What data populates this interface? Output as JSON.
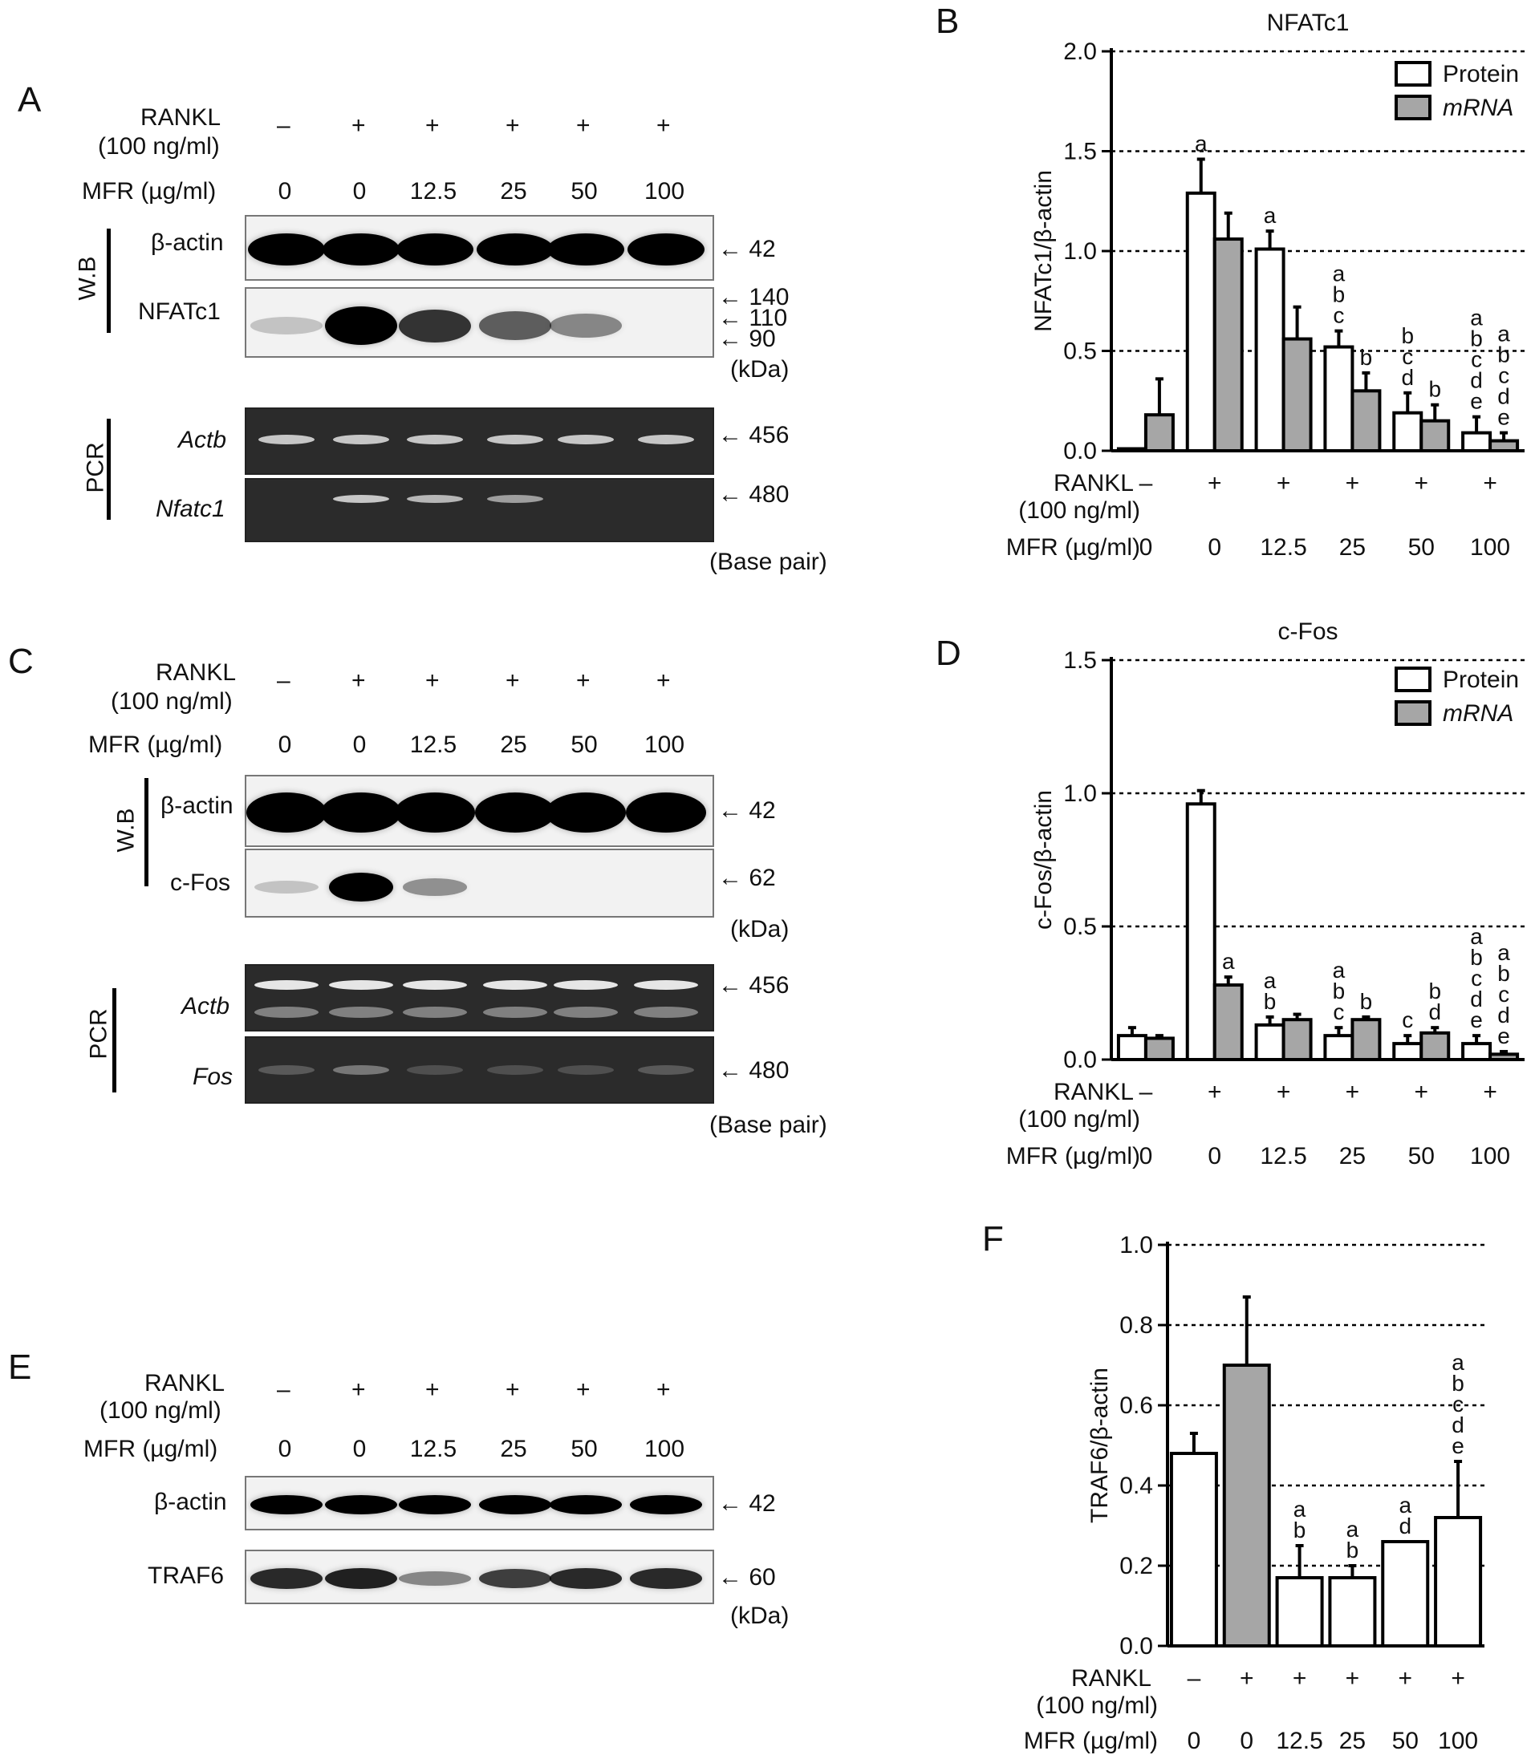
{
  "panels": {
    "A": {
      "letter": "A",
      "rankl_label": "RANKL",
      "rankl_sub": "(100 ng/ml)",
      "rankl_vals": [
        "–",
        "+",
        "+",
        "+",
        "+",
        "+"
      ],
      "mfr_label": "MFR (µg/ml)",
      "mfr_vals": [
        "0",
        "0",
        "12.5",
        "25",
        "50",
        "100"
      ],
      "wb_label": "W.B",
      "pcr_label": "PCR",
      "actin": "β-actin",
      "target": "NFATc1",
      "actb": "Actb",
      "gene": "Nfatc1",
      "mw_actin": "42",
      "mw_target": [
        "140",
        "110",
        "90"
      ],
      "kda": "(kDa)",
      "bp_actb": "456",
      "bp_gene": "480",
      "bp_unit": "(Base pair)"
    },
    "C": {
      "letter": "C",
      "rankl_label": "RANKL",
      "rankl_sub": "(100 ng/ml)",
      "rankl_vals": [
        "–",
        "+",
        "+",
        "+",
        "+",
        "+"
      ],
      "mfr_label": "MFR (µg/ml)",
      "mfr_vals": [
        "0",
        "0",
        "12.5",
        "25",
        "50",
        "100"
      ],
      "wb_label": "W.B",
      "pcr_label": "PCR",
      "actin": "β-actin",
      "target": "c-Fos",
      "actb": "Actb",
      "gene": "Fos",
      "mw_actin": "42",
      "mw_target": "62",
      "kda": "(kDa)",
      "bp_actb": "456",
      "bp_gene": "480",
      "bp_unit": "(Base pair)"
    },
    "E": {
      "letter": "E",
      "rankl_label": "RANKL",
      "rankl_sub": "(100 ng/ml)",
      "rankl_vals": [
        "–",
        "+",
        "+",
        "+",
        "+",
        "+"
      ],
      "mfr_label": "MFR (µg/ml)",
      "mfr_vals": [
        "0",
        "0",
        "12.5",
        "25",
        "50",
        "100"
      ],
      "actin": "β-actin",
      "target": "TRAF6",
      "mw_actin": "42",
      "mw_target": "60",
      "kda": "(kDa)"
    }
  },
  "band_intensity": {
    "A_nfatc1": [
      0.05,
      1.0,
      0.75,
      0.55,
      0.35,
      0.0
    ],
    "A_nfatc1_pcr": [
      0.0,
      0.8,
      0.7,
      0.55,
      0.0,
      0.0
    ],
    "C_cfos": [
      0.05,
      1.0,
      0.3,
      0.0,
      0.0,
      0.0
    ],
    "C_fos_pcr": [
      0.1,
      0.3,
      0.05,
      0.05,
      0.05,
      0.1
    ],
    "E_traf6": [
      0.8,
      0.85,
      0.35,
      0.7,
      0.8,
      0.8
    ]
  },
  "colors": {
    "protein": "#ffffff",
    "mrna": "#a6a6a6",
    "bar_edge": "#000000"
  },
  "chart_data": [
    {
      "panel": "B",
      "type": "bar",
      "title": "NFATc1",
      "ylabel": "NFATc1/β-actin",
      "ylim": [
        0,
        2.0
      ],
      "yticks": [
        "0.0",
        "0.5",
        "1.0",
        "1.5",
        "2.0"
      ],
      "grid": true,
      "legend_position": "top-right",
      "rankl_label": "RANKL",
      "rankl_sub": "(100 ng/ml)",
      "rankl_vals": [
        "–",
        "+",
        "+",
        "+",
        "+",
        "+"
      ],
      "mfr_label": "MFR (µg/ml)",
      "categories": [
        "0",
        "0",
        "12.5",
        "25",
        "50",
        "100"
      ],
      "series": [
        {
          "name": "Protein",
          "values": [
            0.01,
            1.29,
            1.01,
            0.52,
            0.19,
            0.09
          ],
          "errors": [
            0.0,
            0.17,
            0.09,
            0.08,
            0.1,
            0.08
          ],
          "letters": [
            "",
            "a",
            "a",
            "a\nb\nc",
            "b\nc\nd",
            "a\nb\nc\nd\ne"
          ]
        },
        {
          "name": "mRNA",
          "values": [
            0.18,
            1.06,
            0.56,
            0.3,
            0.15,
            0.05
          ],
          "errors": [
            0.18,
            0.13,
            0.16,
            0.09,
            0.08,
            0.04
          ],
          "letters": [
            "",
            "",
            "",
            "b",
            "b",
            "a\nb\nc\nd\ne"
          ]
        }
      ]
    },
    {
      "panel": "D",
      "type": "bar",
      "title": "c-Fos",
      "ylabel": "c-Fos/β-actin",
      "ylim": [
        0,
        1.5
      ],
      "yticks": [
        "0.0",
        "0.5",
        "1.0",
        "1.5"
      ],
      "grid": true,
      "legend_position": "top-right",
      "rankl_label": "RANKL",
      "rankl_sub": "(100 ng/ml)",
      "rankl_vals": [
        "–",
        "+",
        "+",
        "+",
        "+",
        "+"
      ],
      "mfr_label": "MFR (µg/ml)",
      "categories": [
        "0",
        "0",
        "12.5",
        "25",
        "50",
        "100"
      ],
      "series": [
        {
          "name": "Protein",
          "values": [
            0.09,
            0.96,
            0.13,
            0.09,
            0.06,
            0.06
          ],
          "errors": [
            0.03,
            0.05,
            0.03,
            0.03,
            0.03,
            0.03
          ],
          "letters": [
            "",
            "",
            "a\nb",
            "a\nb\nc",
            "c",
            "a\nb\nc\nd\ne"
          ]
        },
        {
          "name": "mRNA",
          "values": [
            0.08,
            0.28,
            0.15,
            0.15,
            0.1,
            0.02
          ],
          "errors": [
            0.01,
            0.03,
            0.02,
            0.01,
            0.02,
            0.01
          ],
          "letters": [
            "",
            "a",
            "",
            "b",
            "b\nd",
            "a\nb\nc\nd\ne"
          ]
        }
      ]
    },
    {
      "panel": "F",
      "type": "bar",
      "ylabel": "TRAF6/β-actin",
      "ylim": [
        0,
        1.0
      ],
      "yticks": [
        "0.0",
        "0.2",
        "0.4",
        "0.6",
        "0.8",
        "1.0"
      ],
      "grid": true,
      "rankl_label": "RANKL",
      "rankl_sub": "(100 ng/ml)",
      "rankl_vals": [
        "–",
        "+",
        "+",
        "+",
        "+",
        "+"
      ],
      "mfr_label": "MFR (µg/ml)",
      "categories": [
        "0",
        "0",
        "12.5",
        "25",
        "50",
        "100"
      ],
      "values": [
        0.48,
        0.7,
        0.17,
        0.17,
        0.26,
        0.32
      ],
      "errors": [
        0.05,
        0.17,
        0.08,
        0.03,
        0.0,
        0.14
      ],
      "fills": [
        "#ffffff",
        "#a6a6a6",
        "#ffffff",
        "#ffffff",
        "#ffffff",
        "#ffffff"
      ],
      "letters": [
        "",
        "",
        "a\nb",
        "a\nb",
        "a\nd",
        "a\nb\nc\nd\ne"
      ]
    }
  ]
}
